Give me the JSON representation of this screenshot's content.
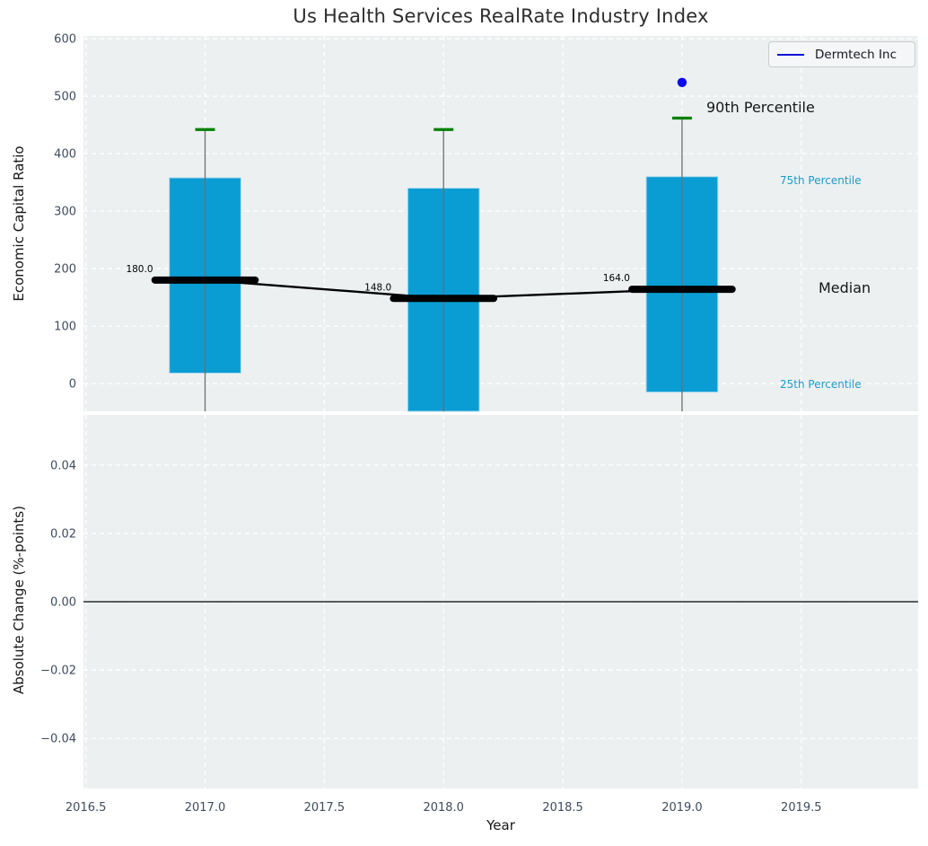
{
  "title": "Us Health Services RealRate Industry Index",
  "legend": {
    "label": "Dermtech Inc",
    "line_color": "#1010d8"
  },
  "chart_data": [
    {
      "type": "box",
      "title": "Us Health Services RealRate Industry Index",
      "ylabel": "Economic Capital Ratio",
      "ylim": [
        -48.5,
        605
      ],
      "yticks": [
        0,
        100,
        200,
        300,
        400,
        500,
        600
      ],
      "ytick_labels": [
        "0",
        "100",
        "200",
        "300",
        "400",
        "500",
        "600"
      ],
      "xlim": [
        2016.49,
        2019.99
      ],
      "xticks": [
        2016.5,
        2017.0,
        2017.5,
        2018.0,
        2018.5,
        2019.0,
        2019.5
      ],
      "grid": true,
      "legend": {
        "label": "Dermtech Inc",
        "position": "upper right"
      },
      "boxes": [
        {
          "x": 2017,
          "p90": 442,
          "q75": 358,
          "median": 180,
          "q25": 18,
          "whisker_low": -60,
          "median_label": "180.0"
        },
        {
          "x": 2018,
          "p90": 442,
          "q75": 340,
          "median": 148,
          "q25": -60,
          "whisker_low": -60,
          "median_label": "148.0"
        },
        {
          "x": 2019,
          "p90": 462,
          "q75": 360,
          "median": 164,
          "q25": -15,
          "whisker_low": -60,
          "median_label": "164.0"
        }
      ],
      "median_trend": [
        {
          "x": 2017,
          "y": 180
        },
        {
          "x": 2018,
          "y": 148
        },
        {
          "x": 2019,
          "y": 164
        }
      ],
      "company_point": {
        "name": "Dermtech Inc",
        "x": 2019,
        "y": 524
      },
      "percentile_annotations": [
        {
          "text": "90th Percentile",
          "y": 480,
          "color": "#161616",
          "size": "large"
        },
        {
          "text": "75th Percentile",
          "y": 352,
          "color": "#1d9bcd",
          "size": "small"
        },
        {
          "text": "Median",
          "y": 166,
          "color": "#161616",
          "size": "large"
        },
        {
          "text": "25th Percentile",
          "y": -2,
          "color": "#1d9bcd",
          "size": "small"
        }
      ],
      "colors": {
        "box_fill": "#0a9dd3",
        "box_edge": "#a9d9ec",
        "percentile_cap": "#008000",
        "median_line": "#000000",
        "whisker": "#6e6e6e",
        "company_point": "#0a0af0",
        "axes_background": "#ecf0f1",
        "gridline": "#ffffff",
        "tick_text": "#3e4c5e"
      }
    },
    {
      "type": "empty",
      "ylabel": "Absolute Change (%-points)",
      "xlabel": "Year",
      "ylim": [
        -0.0547,
        0.0547
      ],
      "yticks": [
        -0.04,
        -0.02,
        0.0,
        0.02,
        0.04
      ],
      "ytick_labels": [
        "−0.04",
        "−0.02",
        "0.00",
        "0.02",
        "0.04"
      ],
      "xticks": [
        2016.5,
        2017.0,
        2017.5,
        2018.0,
        2018.5,
        2019.0,
        2019.5
      ],
      "xtick_labels": [
        "2016.5",
        "2017.0",
        "2017.5",
        "2018.0",
        "2018.5",
        "2019.0",
        "2019.5"
      ],
      "zero_line": true,
      "grid": true
    }
  ]
}
